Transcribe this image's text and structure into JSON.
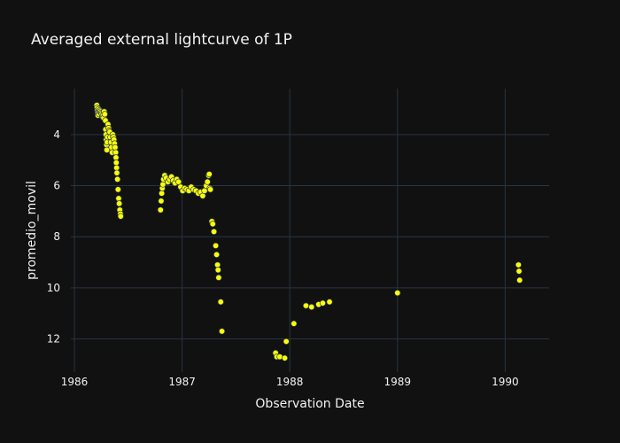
{
  "chart_data": {
    "type": "scatter",
    "title": "Averaged external lightcurve of 1P",
    "xlabel": "Observation Date",
    "ylabel": "promedio_movil",
    "x_ticks": [
      "1986",
      "1987",
      "1988",
      "1989",
      "1990"
    ],
    "y_ticks": [
      "4",
      "6",
      "8",
      "10",
      "12"
    ],
    "x_range": [
      "1985-12-20",
      "1990-05-30"
    ],
    "y_range": [
      13.3,
      2.2
    ],
    "y_reversed": true,
    "grid": true,
    "colors": {
      "background": "#111111",
      "grid": "#283442",
      "marker": "#ffff00",
      "marker_edge": "#2a3f5f",
      "text": "#f2f2f2"
    },
    "series": [
      {
        "points": [
          [
            "1986-03-18",
            2.85
          ],
          [
            "1986-03-19",
            2.95
          ],
          [
            "1986-03-20",
            3.05
          ],
          [
            "1986-03-21",
            3.15
          ],
          [
            "1986-03-22",
            3.25
          ],
          [
            "1986-03-23",
            3.1
          ],
          [
            "1986-03-24",
            3.0
          ],
          [
            "1986-03-26",
            3.2
          ],
          [
            "1986-03-28",
            3.05
          ],
          [
            "1986-03-30",
            3.1
          ],
          [
            "1986-04-02",
            3.15
          ],
          [
            "1986-04-04",
            3.2
          ],
          [
            "1986-04-06",
            3.3
          ],
          [
            "1986-04-08",
            3.25
          ],
          [
            "1986-04-10",
            3.35
          ],
          [
            "1986-04-12",
            3.1
          ],
          [
            "1986-04-14",
            3.2
          ],
          [
            "1986-04-16",
            3.45
          ],
          [
            "1986-04-17",
            3.8
          ],
          [
            "1986-04-18",
            4.0
          ],
          [
            "1986-04-19",
            4.2
          ],
          [
            "1986-04-20",
            4.4
          ],
          [
            "1986-04-21",
            4.6
          ],
          [
            "1986-04-22",
            4.3
          ],
          [
            "1986-04-23",
            4.1
          ],
          [
            "1986-04-25",
            3.6
          ],
          [
            "1986-04-27",
            3.75
          ],
          [
            "1986-04-29",
            3.85
          ],
          [
            "1986-05-01",
            3.9
          ],
          [
            "1986-05-03",
            4.1
          ],
          [
            "1986-05-05",
            4.3
          ],
          [
            "1986-05-07",
            4.5
          ],
          [
            "1986-05-09",
            4.7
          ],
          [
            "1986-05-11",
            4.0
          ],
          [
            "1986-05-13",
            4.1
          ],
          [
            "1986-05-15",
            4.2
          ],
          [
            "1986-05-17",
            4.35
          ],
          [
            "1986-05-19",
            4.5
          ],
          [
            "1986-05-21",
            4.7
          ],
          [
            "1986-05-22",
            4.9
          ],
          [
            "1986-05-23",
            5.1
          ],
          [
            "1986-05-24",
            5.3
          ],
          [
            "1986-05-25",
            5.5
          ],
          [
            "1986-05-27",
            5.75
          ],
          [
            "1986-05-29",
            6.15
          ],
          [
            "1986-05-31",
            6.5
          ],
          [
            "1986-06-02",
            6.7
          ],
          [
            "1986-06-04",
            6.95
          ],
          [
            "1986-06-06",
            7.1
          ],
          [
            "1986-06-07",
            7.2
          ],
          [
            "1986-10-20",
            6.95
          ],
          [
            "1986-10-22",
            6.6
          ],
          [
            "1986-10-24",
            6.3
          ],
          [
            "1986-10-26",
            6.1
          ],
          [
            "1986-10-28",
            5.95
          ],
          [
            "1986-10-30",
            5.75
          ],
          [
            "1986-11-03",
            5.6
          ],
          [
            "1986-11-08",
            5.7
          ],
          [
            "1986-11-14",
            5.85
          ],
          [
            "1986-11-20",
            5.75
          ],
          [
            "1986-11-26",
            5.65
          ],
          [
            "1986-12-02",
            5.8
          ],
          [
            "1986-12-08",
            5.9
          ],
          [
            "1986-12-14",
            5.75
          ],
          [
            "1986-12-20",
            5.85
          ],
          [
            "1986-12-27",
            6.05
          ],
          [
            "1987-01-03",
            6.2
          ],
          [
            "1987-01-10",
            6.1
          ],
          [
            "1987-01-17",
            6.15
          ],
          [
            "1987-01-24",
            6.2
          ],
          [
            "1987-02-01",
            6.05
          ],
          [
            "1987-02-09",
            6.15
          ],
          [
            "1987-02-17",
            6.2
          ],
          [
            "1987-02-25",
            6.3
          ],
          [
            "1987-03-05",
            6.25
          ],
          [
            "1987-03-12",
            6.4
          ],
          [
            "1987-03-18",
            6.2
          ],
          [
            "1987-03-24",
            6.0
          ],
          [
            "1987-03-28",
            5.85
          ],
          [
            "1987-04-01",
            5.6
          ],
          [
            "1987-04-03",
            5.55
          ],
          [
            "1987-04-05",
            6.1
          ],
          [
            "1987-04-07",
            6.15
          ],
          [
            "1987-04-12",
            7.4
          ],
          [
            "1987-04-15",
            7.5
          ],
          [
            "1987-04-19",
            7.8
          ],
          [
            "1987-04-25",
            8.35
          ],
          [
            "1987-04-28",
            8.7
          ],
          [
            "1987-05-01",
            9.1
          ],
          [
            "1987-05-03",
            9.3
          ],
          [
            "1987-05-05",
            9.6
          ],
          [
            "1987-05-12",
            10.55
          ],
          [
            "1987-05-16",
            11.7
          ],
          [
            "1987-11-14",
            12.55
          ],
          [
            "1987-11-18",
            12.7
          ],
          [
            "1987-11-28",
            12.7
          ],
          [
            "1987-12-15",
            12.75
          ],
          [
            "1987-12-20",
            12.1
          ],
          [
            "1988-01-15",
            11.4
          ],
          [
            "1988-02-25",
            10.7
          ],
          [
            "1988-03-15",
            10.75
          ],
          [
            "1988-04-08",
            10.65
          ],
          [
            "1988-04-22",
            10.6
          ],
          [
            "1988-05-15",
            10.55
          ],
          [
            "1989-01-01",
            10.2
          ],
          [
            "1990-02-15",
            9.1
          ],
          [
            "1990-02-17",
            9.35
          ],
          [
            "1990-02-19",
            9.7
          ]
        ]
      }
    ]
  }
}
